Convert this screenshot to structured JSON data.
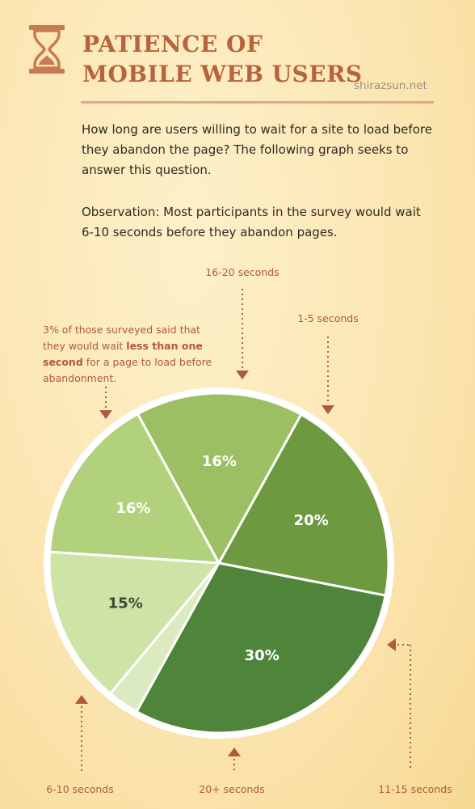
{
  "header": {
    "title": "PATIENCE OF MOBILE WEB USERS",
    "source": "shirazsun.net"
  },
  "intro": {
    "question": "How long are users willing to wait for a site to load before they abandon the page? The following graph seeks to answer this question.",
    "observation": "Observation: Most participants in the survey would wait 6-10 seconds before they abandon pages."
  },
  "note": {
    "part1": "3% of those surveyed said that they would wait ",
    "bold": "less than one second",
    "part2": " for a page to load before abandonment."
  },
  "colors": {
    "title": "#b8633b",
    "label": "#b05a3a",
    "rule": "#dcab8c"
  },
  "chart_data": {
    "type": "pie",
    "title": "",
    "slices": [
      {
        "label": "less than one second",
        "value": 3,
        "display": "",
        "color": "#dcebbf",
        "text_color": "#ffffff"
      },
      {
        "label": "16-20 seconds",
        "value": 15,
        "display": "15%",
        "color": "#cee3a6",
        "text_color": "#3f4a35"
      },
      {
        "label": "1-5 seconds",
        "value": 16,
        "display": "16%",
        "color": "#b2d17c",
        "text_color": "#ffffff"
      },
      {
        "label": "11-15 seconds",
        "value": 16,
        "display": "16%",
        "color": "#9bbf62",
        "text_color": "#ffffff"
      },
      {
        "label": "20+ seconds",
        "value": 20,
        "display": "20%",
        "color": "#6d9a3e",
        "text_color": "#ffffff"
      },
      {
        "label": "6-10 seconds",
        "value": 30,
        "display": "30%",
        "color": "#4f853a",
        "text_color": "#ffffff"
      }
    ]
  }
}
